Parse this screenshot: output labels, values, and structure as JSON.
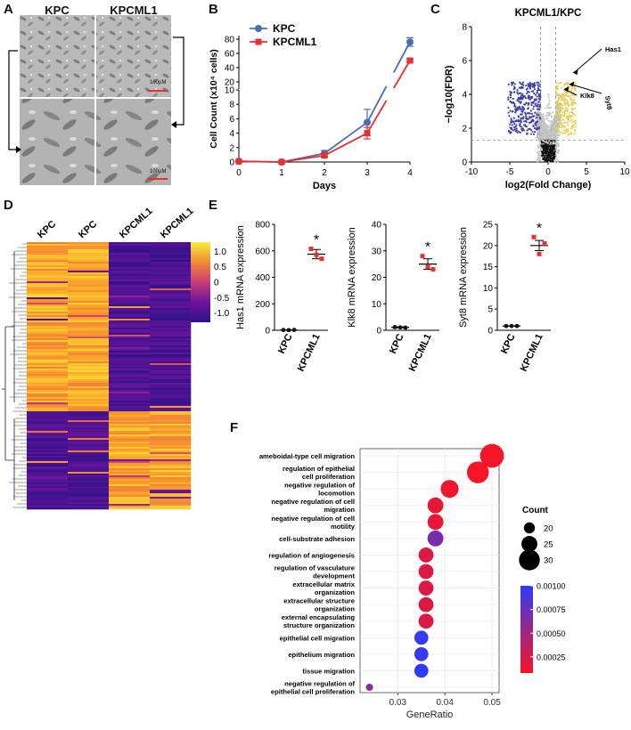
{
  "panels": {
    "A": {
      "label": "A",
      "col1": "KPC",
      "col2": "KPCML1",
      "scalebar_top": "100µM",
      "scalebar_bottom": "100µM"
    },
    "B": {
      "label": "B",
      "ylabel": "Cell Count (x10⁴ cells)",
      "xlabel": "Days",
      "legend": [
        "KPC",
        "KPCML1"
      ],
      "colors": {
        "KPC": "#4a6cb3",
        "KPCML1": "#e8302e"
      }
    },
    "C": {
      "label": "C",
      "title": "KPCML1/KPC",
      "xlabel": "log2(Fold Change)",
      "ylabel": "−log10(FDR)",
      "genes": [
        "Has1",
        "Klk8",
        "Syt8"
      ]
    },
    "D": {
      "label": "D",
      "columns": [
        "KPC",
        "KPC",
        "KPCML1",
        "KPCML1"
      ],
      "colorbar_ticks": [
        "1.0",
        "0.5",
        "0",
        "-0.5",
        "-1.0"
      ]
    },
    "E": {
      "label": "E",
      "star": "*"
    },
    "F": {
      "label": "F",
      "xlabel": "GeneRatio",
      "count_title": "Count",
      "count_sizes": [
        "20",
        "25",
        "30"
      ],
      "padj_ticks": [
        "0.00100",
        "0.00075",
        "0.00050",
        "0.00025"
      ]
    }
  },
  "chart_data": [
    {
      "panel": "B",
      "type": "line",
      "title": "",
      "xlabel": "Days",
      "ylabel": "Cell Count (x10⁴ cells)",
      "x": [
        0,
        1,
        2,
        3,
        4
      ],
      "xticks": [
        "0",
        "1",
        "2",
        "3",
        "4"
      ],
      "yticks_lower": [
        "0",
        "2",
        "4",
        "6",
        "8",
        "10"
      ],
      "yticks_upper": [
        "20",
        "40",
        "60",
        "80"
      ],
      "ylim_lower": [
        0,
        10
      ],
      "ylim_upper": [
        10,
        85
      ],
      "series": [
        {
          "name": "KPC",
          "values": [
            0.1,
            0.0,
            1.2,
            5.5,
            76
          ],
          "errors": [
            0.1,
            0.1,
            0.4,
            1.8,
            6
          ]
        },
        {
          "name": "KPCML1",
          "values": [
            0.1,
            0.0,
            0.9,
            4.0,
            50
          ],
          "errors": [
            0.1,
            0.1,
            0.2,
            0.8,
            2
          ]
        }
      ]
    },
    {
      "panel": "C",
      "type": "scatter",
      "title": "KPCML1/KPC",
      "xlabel": "log2(Fold Change)",
      "ylabel": "−log10(FDR)",
      "xlim": [
        -10,
        10
      ],
      "ylim": [
        0,
        8
      ],
      "xticks": [
        "-10",
        "-5",
        "0",
        "5",
        "10"
      ],
      "yticks": [
        "0",
        "2",
        "4",
        "6",
        "8"
      ],
      "thresholds": {
        "log2fc": [
          -1,
          1
        ],
        "neglog10fdr": 1.3
      },
      "labeled_points": [
        {
          "gene": "Has1",
          "x": 3.2,
          "y": 5.3
        },
        {
          "gene": "Klk8",
          "x": 2.0,
          "y": 4.3
        },
        {
          "gene": "Syt8",
          "x": 2.7,
          "y": 4.6
        }
      ]
    },
    {
      "panel": "D",
      "type": "heatmap",
      "columns": [
        "KPC",
        "KPC",
        "KPCML1",
        "KPCML1"
      ],
      "color_range": [
        -1.3,
        1.3
      ],
      "colorbar_ticks": [
        1.0,
        0.5,
        0,
        -0.5,
        -1.0
      ]
    },
    {
      "panel": "E1",
      "type": "scatter",
      "ylabel": "Has1 mRNA expression",
      "categories": [
        "KPC",
        "KPCML1"
      ],
      "ylim": [
        0,
        800
      ],
      "yticks": [
        "0",
        "200",
        "400",
        "600",
        "800"
      ],
      "points": {
        "KPC": [
          2,
          3,
          1
        ],
        "KPCML1": [
          615,
          540,
          570
        ]
      },
      "means": {
        "KPC": 2,
        "KPCML1": 575
      },
      "sem": {
        "KPC": 1,
        "KPCML1": 35
      },
      "annotation": "*"
    },
    {
      "panel": "E2",
      "type": "scatter",
      "ylabel": "Klk8 mRNA expression",
      "categories": [
        "KPC",
        "KPCML1"
      ],
      "ylim": [
        0,
        40
      ],
      "yticks": [
        "0",
        "10",
        "20",
        "30",
        "40"
      ],
      "points": {
        "KPC": [
          1.2,
          1.0,
          1.1
        ],
        "KPCML1": [
          28,
          23,
          24
        ]
      },
      "means": {
        "KPC": 1.1,
        "KPCML1": 25
      },
      "sem": {
        "KPC": 0.2,
        "KPCML1": 2
      },
      "annotation": "*"
    },
    {
      "panel": "E3",
      "type": "scatter",
      "ylabel": "Syt8 mRNA expression",
      "categories": [
        "KPC",
        "KPCML1"
      ],
      "ylim": [
        0,
        25
      ],
      "yticks": [
        "0",
        "5",
        "10",
        "15",
        "20",
        "25"
      ],
      "points": {
        "KPC": [
          1.0,
          1.0,
          1.0
        ],
        "KPCML1": [
          22,
          20.5,
          18
        ]
      },
      "means": {
        "KPC": 1.0,
        "KPCML1": 20
      },
      "sem": {
        "KPC": 0.05,
        "KPCML1": 1.2
      },
      "annotation": "*"
    },
    {
      "panel": "F",
      "type": "scatter",
      "xlabel": "GeneRatio",
      "xlim": [
        0.022,
        0.0515
      ],
      "xticks": [
        "0.03",
        "0.04",
        "0.05"
      ],
      "terms": [
        {
          "term": "ameboidal-type cell migration",
          "ratio": 0.05,
          "count": 33,
          "padj": 8e-05
        },
        {
          "term": "regulation of epithelial cell proliferation",
          "ratio": 0.047,
          "count": 31,
          "padj": 8e-05
        },
        {
          "term": "negative regulation of locomotion",
          "ratio": 0.041,
          "count": 27,
          "padj": 0.0001
        },
        {
          "term": "negative regulation of cell migration",
          "ratio": 0.038,
          "count": 25,
          "padj": 0.00015
        },
        {
          "term": "negative regulation of cell motility",
          "ratio": 0.038,
          "count": 25,
          "padj": 0.00015
        },
        {
          "term": "cell-substrate adhesion",
          "ratio": 0.038,
          "count": 25,
          "padj": 0.00065
        },
        {
          "term": "regulation of angiogenesis",
          "ratio": 0.036,
          "count": 24,
          "padj": 0.0002
        },
        {
          "term": "regulation of vasculature development",
          "ratio": 0.036,
          "count": 24,
          "padj": 0.0002
        },
        {
          "term": "extracellular matrix organization",
          "ratio": 0.036,
          "count": 24,
          "padj": 0.0002
        },
        {
          "term": "extracellular structure organization",
          "ratio": 0.036,
          "count": 24,
          "padj": 0.0002
        },
        {
          "term": "external encapsulating structure organization",
          "ratio": 0.036,
          "count": 24,
          "padj": 0.0002
        },
        {
          "term": "epithelial cell migration",
          "ratio": 0.035,
          "count": 23,
          "padj": 0.00095
        },
        {
          "term": "epithelium migration",
          "ratio": 0.035,
          "count": 23,
          "padj": 0.00095
        },
        {
          "term": "tissue migration",
          "ratio": 0.035,
          "count": 23,
          "padj": 0.001
        },
        {
          "term": "negative regulation of epithelial cell proliferation",
          "ratio": 0.024,
          "count": 16,
          "padj": 0.0006
        }
      ],
      "term_lines": [
        [
          "ameboidal-type cell migration"
        ],
        [
          "regulation of epithelial",
          "cell proliferation"
        ],
        [
          "negative regulation of",
          "locomotion"
        ],
        [
          "negative regulation of cell",
          "migration"
        ],
        [
          "negative regulation of cell",
          "motility"
        ],
        [
          "cell-substrate adhesion"
        ],
        [
          "regulation of angiogenesis"
        ],
        [
          "regulation of vasculature",
          "development"
        ],
        [
          "extracellular matrix",
          "organization"
        ],
        [
          "extracellular structure",
          "organization"
        ],
        [
          "external encapsulating",
          "structure organization"
        ],
        [
          "epithelial cell migration"
        ],
        [
          "epithelium migration"
        ],
        [
          "tissue migration"
        ],
        [
          "negative regulation of",
          "epithelial cell proliferation"
        ]
      ],
      "count_legend": [
        20,
        25,
        30
      ],
      "padj_legend": [
        0.001,
        0.00075,
        0.0005,
        0.00025
      ]
    }
  ]
}
